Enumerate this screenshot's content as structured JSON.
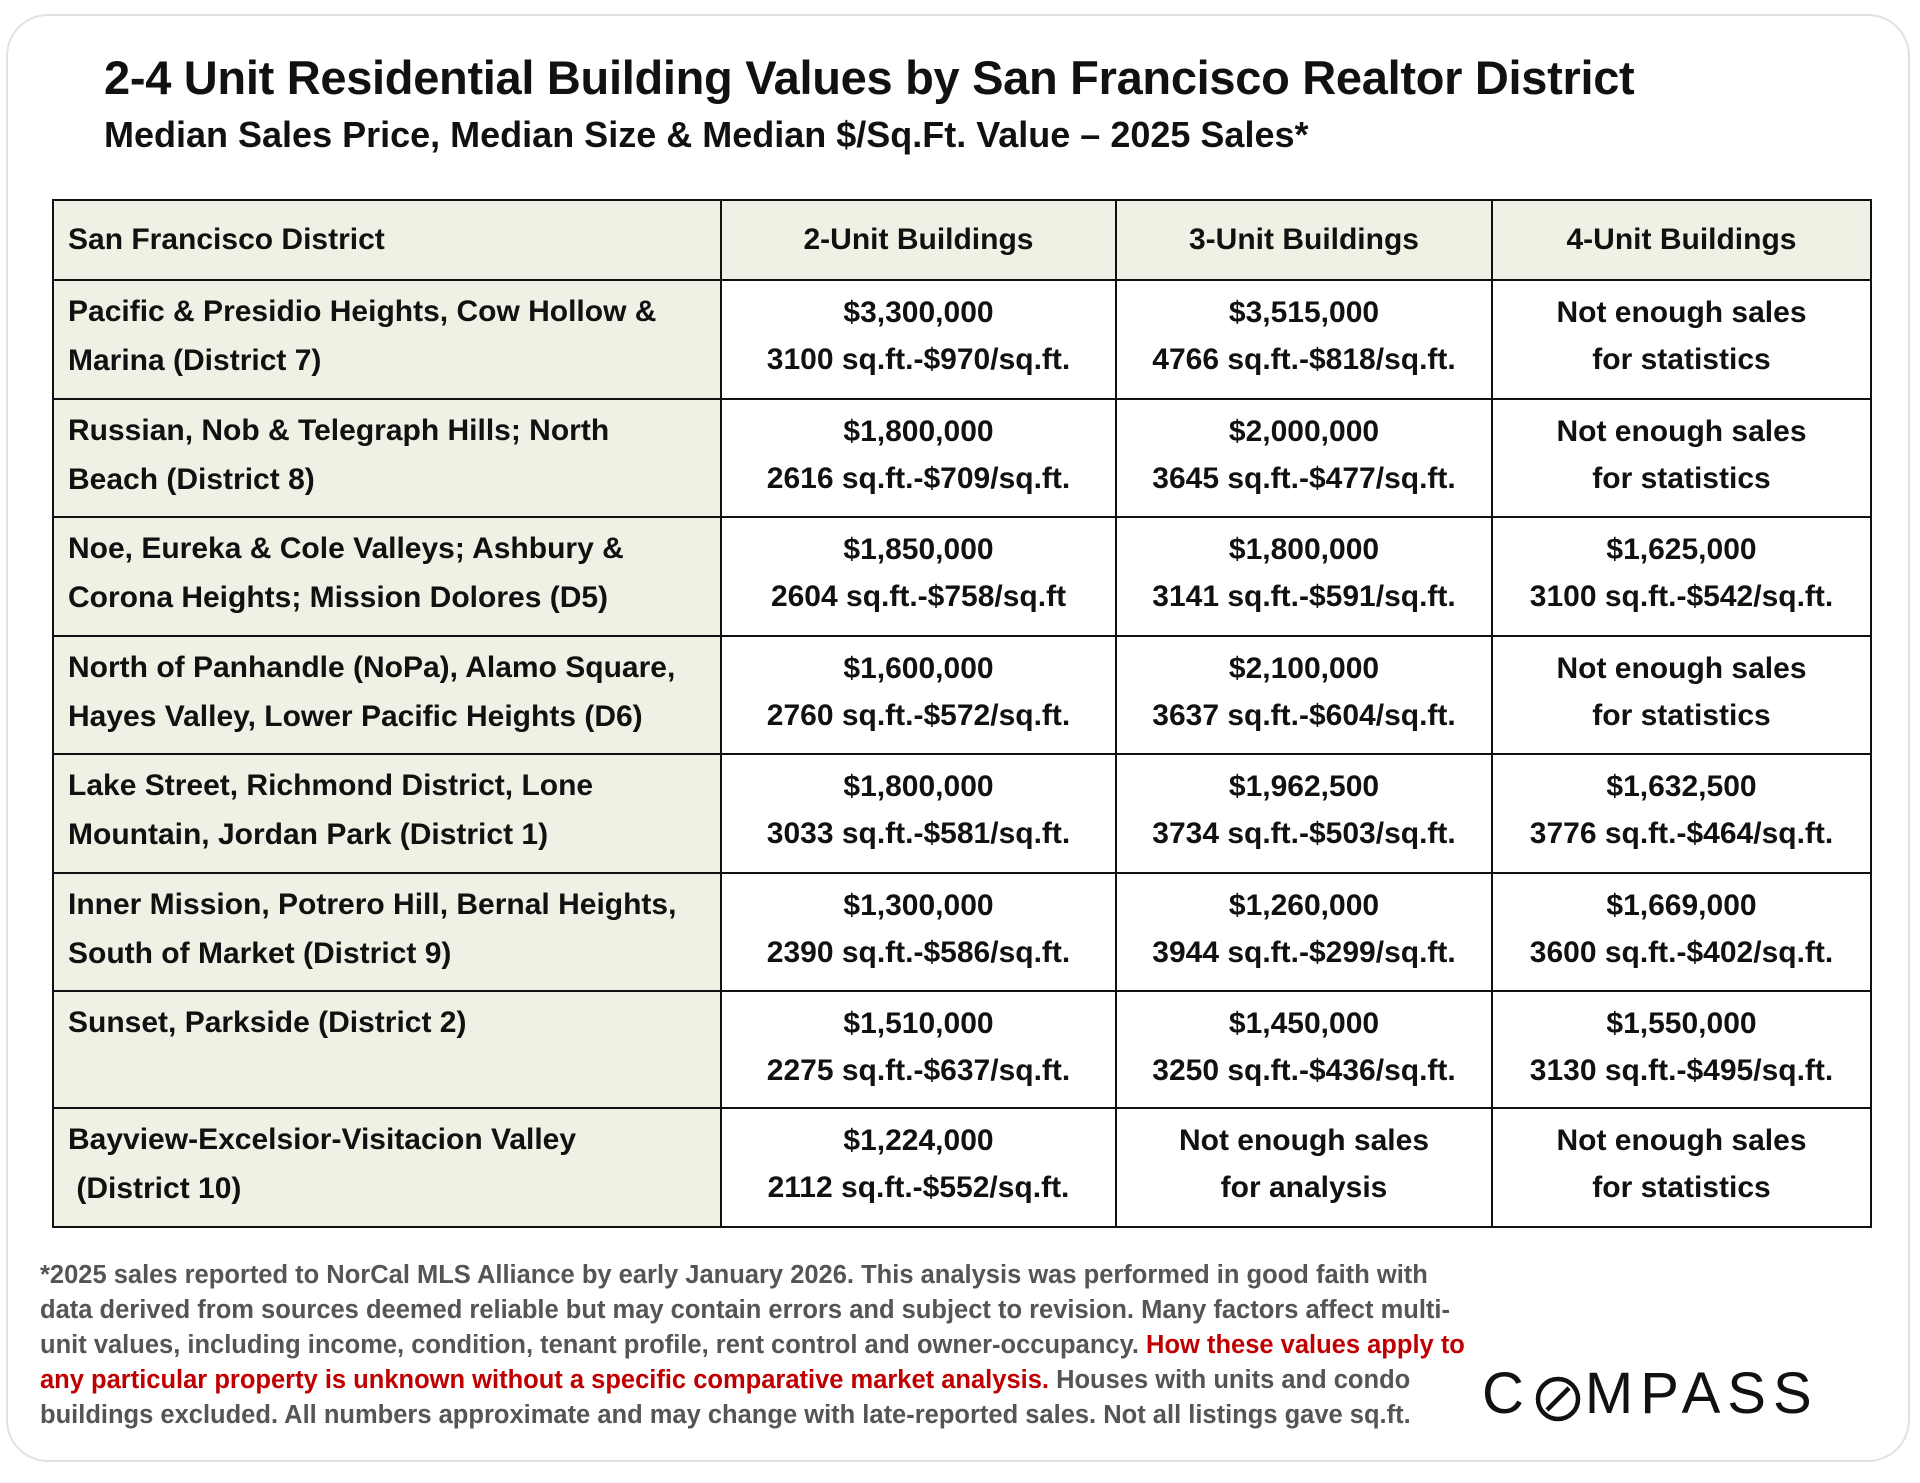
{
  "title": "2-4 Unit Residential Building Values by San Francisco Realtor District",
  "subtitle": "Median Sales Price, Median Size & Median $/Sq.Ft. Value – 2025 Sales*",
  "table": {
    "headers": [
      "San Francisco District",
      "2-Unit Buildings",
      "3-Unit Buildings",
      "4-Unit Buildings"
    ],
    "rows": [
      {
        "district_lines": [
          "Pacific & Presidio Heights, Cow Hollow &",
          "Marina (District 7)"
        ],
        "u2": [
          "$3,300,000",
          "3100 sq.ft.-$970/sq.ft."
        ],
        "u3": [
          "$3,515,000",
          "4766 sq.ft.-$818/sq.ft."
        ],
        "u4": [
          "Not enough sales",
          "for statistics"
        ]
      },
      {
        "district_lines": [
          "Russian, Nob & Telegraph Hills; North",
          "Beach (District 8)"
        ],
        "u2": [
          "$1,800,000",
          "2616 sq.ft.-$709/sq.ft."
        ],
        "u3": [
          "$2,000,000",
          "3645 sq.ft.-$477/sq.ft."
        ],
        "u4": [
          "Not enough sales",
          "for statistics"
        ]
      },
      {
        "district_lines": [
          "Noe, Eureka & Cole Valleys; Ashbury &",
          "Corona Heights; Mission Dolores (D5)"
        ],
        "u2": [
          "$1,850,000",
          "2604 sq.ft.-$758/sq.ft"
        ],
        "u3": [
          "$1,800,000",
          "3141 sq.ft.-$591/sq.ft."
        ],
        "u4": [
          "$1,625,000",
          "3100 sq.ft.-$542/sq.ft."
        ]
      },
      {
        "district_lines": [
          "North of Panhandle (NoPa), Alamo Square,",
          "Hayes Valley, Lower Pacific Heights (D6)"
        ],
        "u2": [
          "$1,600,000",
          "2760 sq.ft.-$572/sq.ft."
        ],
        "u3": [
          "$2,100,000",
          "3637 sq.ft.-$604/sq.ft."
        ],
        "u4": [
          "Not enough sales",
          "for statistics"
        ]
      },
      {
        "district_lines": [
          "Lake Street, Richmond District, Lone",
          "Mountain, Jordan Park (District 1)"
        ],
        "u2": [
          "$1,800,000",
          "3033 sq.ft.-$581/sq.ft."
        ],
        "u3": [
          "$1,962,500",
          "3734 sq.ft.-$503/sq.ft."
        ],
        "u4": [
          "$1,632,500",
          "3776 sq.ft.-$464/sq.ft."
        ]
      },
      {
        "district_lines": [
          "Inner Mission, Potrero Hill, Bernal Heights,",
          "South of Market (District 9)"
        ],
        "u2": [
          "$1,300,000",
          "2390 sq.ft.-$586/sq.ft."
        ],
        "u3": [
          "$1,260,000",
          "3944 sq.ft.-$299/sq.ft."
        ],
        "u4": [
          "$1,669,000",
          "3600 sq.ft.-$402/sq.ft."
        ]
      },
      {
        "district_lines": [
          "Sunset, Parkside (District 2)"
        ],
        "u2": [
          "$1,510,000",
          "2275 sq.ft.-$637/sq.ft."
        ],
        "u3": [
          "$1,450,000",
          "3250 sq.ft.-$436/sq.ft."
        ],
        "u4": [
          "$1,550,000",
          "3130 sq.ft.-$495/sq.ft."
        ]
      },
      {
        "district_lines": [
          "Bayview-Excelsior-Visitacion Valley",
          " (District 10)"
        ],
        "u2": [
          "$1,224,000",
          "2112 sq.ft.-$552/sq.ft."
        ],
        "u3": [
          "Not enough sales",
          "for analysis"
        ],
        "u4": [
          "Not enough sales",
          "for statistics"
        ]
      }
    ]
  },
  "footnote": {
    "text1": "*2025 sales reported to NorCal MLS Alliance by early January 2026. This analysis was performed in good faith with data derived from sources deemed reliable but may contain errors and subject to revision. Many factors affect multi-unit values, including income, condition, tenant profile, rent control and owner-occupancy. ",
    "red": "How these values apply to any particular property is unknown without a specific comparative market analysis.",
    "text2": " Houses with units and condo buildings excluded. All numbers approximate and may change with late-reported sales. Not all listings gave sq.ft."
  },
  "logo": {
    "prefix": "C",
    "suffix": "MPASS"
  },
  "colors": {
    "header_bg": "#eef1e3",
    "footnote_gray": "#555555",
    "footnote_red": "#c00000"
  }
}
